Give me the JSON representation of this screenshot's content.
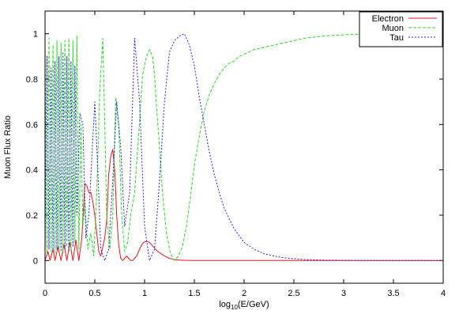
{
  "chart_data": {
    "type": "line",
    "title": "",
    "xlabel_prefix": "log",
    "xlabel_sub": "10",
    "xlabel_suffix": "(E/GeV)",
    "ylabel": "Muon Flux Ratio",
    "xlim": [
      0,
      4
    ],
    "ylim": [
      -0.1,
      1.1
    ],
    "xticks": [
      "0",
      "0.5",
      "1",
      "1.5",
      "2",
      "2.5",
      "3",
      "3.5",
      "4"
    ],
    "yticks": [
      "0",
      "0.2",
      "0.4",
      "0.6",
      "0.8",
      "1"
    ],
    "legend_position": "top-right",
    "series": [
      {
        "name": "Electron",
        "color": "#e8141a",
        "dash": "none",
        "x": [
          0.0,
          0.03,
          0.05,
          0.08,
          0.1,
          0.13,
          0.16,
          0.19,
          0.22,
          0.25,
          0.28,
          0.31,
          0.34,
          0.37,
          0.4,
          0.42,
          0.44,
          0.46,
          0.48,
          0.5,
          0.52,
          0.54,
          0.56,
          0.58,
          0.6,
          0.62,
          0.64,
          0.66,
          0.68,
          0.7,
          0.72,
          0.74,
          0.76,
          0.78,
          0.8,
          0.82,
          0.84,
          0.86,
          0.88,
          0.9,
          0.92,
          0.94,
          0.96,
          0.98,
          1.0,
          1.02,
          1.04,
          1.06,
          1.08,
          1.1,
          1.12,
          1.15,
          1.2,
          1.25,
          1.3,
          1.35,
          1.4,
          1.5,
          1.6,
          2.0,
          2.5,
          3.0,
          3.5,
          4.0
        ],
        "y": [
          0.0,
          0.04,
          0.0,
          0.05,
          0.0,
          0.06,
          0.0,
          0.07,
          0.0,
          0.08,
          0.0,
          0.09,
          0.0,
          0.1,
          0.34,
          0.33,
          0.3,
          0.3,
          0.26,
          0.2,
          0.12,
          0.04,
          0.02,
          0.06,
          0.1,
          0.18,
          0.38,
          0.46,
          0.49,
          0.4,
          0.2,
          0.07,
          0.01,
          0.0,
          0.01,
          0.02,
          0.01,
          0.0,
          0.0,
          0.01,
          0.02,
          0.04,
          0.06,
          0.075,
          0.082,
          0.085,
          0.082,
          0.075,
          0.065,
          0.055,
          0.045,
          0.035,
          0.02,
          0.01,
          0.004,
          0.002,
          0.001,
          0.0,
          0.0,
          0.0,
          0.0,
          0.0,
          0.0,
          0.0
        ]
      },
      {
        "name": "Muon",
        "color": "#2ad72a",
        "dash": "4,2",
        "x": [
          0.0,
          0.02,
          0.04,
          0.06,
          0.08,
          0.1,
          0.12,
          0.14,
          0.16,
          0.18,
          0.2,
          0.22,
          0.24,
          0.26,
          0.28,
          0.3,
          0.32,
          0.34,
          0.36,
          0.38,
          0.4,
          0.43,
          0.46,
          0.49,
          0.52,
          0.55,
          0.58,
          0.6,
          0.62,
          0.65,
          0.68,
          0.71,
          0.74,
          0.77,
          0.8,
          0.83,
          0.86,
          0.9,
          0.94,
          0.98,
          1.02,
          1.05,
          1.08,
          1.1,
          1.12,
          1.15,
          1.18,
          1.22,
          1.26,
          1.3,
          1.34,
          1.38,
          1.42,
          1.46,
          1.5,
          1.55,
          1.6,
          1.65,
          1.7,
          1.75,
          1.8,
          1.85,
          1.9,
          1.95,
          2.0,
          2.1,
          2.2,
          2.3,
          2.4,
          2.5,
          2.6,
          2.7,
          2.8,
          2.9,
          3.0,
          3.1,
          3.2,
          3.3,
          3.4,
          3.5,
          3.6,
          3.7,
          3.8,
          3.9,
          4.0
        ],
        "y": [
          0.95,
          0.03,
          0.98,
          0.04,
          0.95,
          0.03,
          0.97,
          0.05,
          0.96,
          0.03,
          0.97,
          0.06,
          0.98,
          0.04,
          0.97,
          0.08,
          0.99,
          0.05,
          0.6,
          0.15,
          0.25,
          0.05,
          0.12,
          0.02,
          0.3,
          0.75,
          0.98,
          0.6,
          0.2,
          0.05,
          0.2,
          0.72,
          0.6,
          0.2,
          0.04,
          0.08,
          0.2,
          0.3,
          0.55,
          0.82,
          0.9,
          0.93,
          0.9,
          0.82,
          0.68,
          0.5,
          0.3,
          0.12,
          0.03,
          0.0,
          0.02,
          0.06,
          0.15,
          0.28,
          0.42,
          0.55,
          0.66,
          0.73,
          0.78,
          0.82,
          0.85,
          0.87,
          0.88,
          0.9,
          0.91,
          0.93,
          0.94,
          0.95,
          0.96,
          0.97,
          0.98,
          0.985,
          0.99,
          0.993,
          0.995,
          0.997,
          0.998,
          0.999,
          1.0,
          1.0,
          1.0,
          1.0,
          1.0,
          1.0,
          1.0
        ]
      },
      {
        "name": "Tau",
        "color": "#2020d8",
        "dash": "2,2",
        "x": [
          0.0,
          0.02,
          0.04,
          0.06,
          0.08,
          0.1,
          0.12,
          0.14,
          0.16,
          0.18,
          0.2,
          0.22,
          0.24,
          0.26,
          0.28,
          0.3,
          0.32,
          0.35,
          0.38,
          0.41,
          0.44,
          0.47,
          0.5,
          0.53,
          0.56,
          0.6,
          0.64,
          0.68,
          0.72,
          0.76,
          0.8,
          0.85,
          0.9,
          0.95,
          1.0,
          1.05,
          1.1,
          1.15,
          1.2,
          1.25,
          1.3,
          1.35,
          1.4,
          1.45,
          1.5,
          1.55,
          1.6,
          1.65,
          1.7,
          1.75,
          1.8,
          1.9,
          2.0,
          2.1,
          2.2,
          2.3,
          2.4,
          2.5,
          2.6,
          2.8,
          3.0,
          3.5,
          4.0
        ],
        "y": [
          0.02,
          0.9,
          0.05,
          0.85,
          0.04,
          0.88,
          0.05,
          0.9,
          0.04,
          0.92,
          0.05,
          0.9,
          0.04,
          0.88,
          0.06,
          0.86,
          0.2,
          0.65,
          0.6,
          0.1,
          0.2,
          0.45,
          0.7,
          0.4,
          0.05,
          0.0,
          0.05,
          0.35,
          0.7,
          0.5,
          0.15,
          0.3,
          0.98,
          0.7,
          0.15,
          0.0,
          0.05,
          0.35,
          0.7,
          0.92,
          0.97,
          0.99,
          1.0,
          0.95,
          0.86,
          0.72,
          0.6,
          0.48,
          0.38,
          0.3,
          0.23,
          0.14,
          0.08,
          0.05,
          0.03,
          0.02,
          0.012,
          0.008,
          0.005,
          0.002,
          0.001,
          0.0,
          0.0
        ]
      }
    ]
  }
}
